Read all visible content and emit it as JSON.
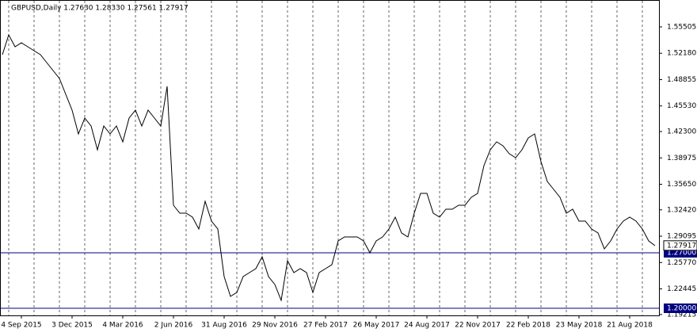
{
  "chart_data": {
    "type": "line",
    "title": "GBPUSD,Daily  1.27630 1.28330 1.27561 1.27917",
    "categories": [
      null,
      null,
      null,
      "4 Sep 2015",
      null,
      null,
      null,
      null,
      null,
      null,
      null,
      "3 Dec 2015",
      null,
      null,
      null,
      null,
      null,
      null,
      null,
      "4 Mar 2016",
      null,
      null,
      null,
      null,
      null,
      null,
      null,
      "2 Jun 2016",
      null,
      null,
      null,
      null,
      null,
      null,
      null,
      "31 Aug 2016",
      null,
      null,
      null,
      null,
      null,
      null,
      null,
      "29 Nov 2016",
      null,
      null,
      null,
      null,
      null,
      null,
      null,
      "27 Feb 2017",
      null,
      null,
      null,
      null,
      null,
      null,
      null,
      "26 May 2017",
      null,
      null,
      null,
      null,
      null,
      null,
      null,
      "24 Aug 2017",
      null,
      null,
      null,
      null,
      null,
      null,
      null,
      "22 Nov 2017",
      null,
      null,
      null,
      null,
      null,
      null,
      null,
      "22 Feb 2018",
      null,
      null,
      null,
      null,
      null,
      null,
      null,
      "23 May 2018",
      null,
      null,
      null,
      null,
      null,
      null,
      null,
      "21 Aug 2018",
      null,
      null,
      null,
      null
    ],
    "values": [
      1.52,
      1.545,
      1.53,
      1.535,
      1.53,
      1.525,
      1.52,
      1.51,
      1.5,
      1.49,
      1.47,
      1.45,
      1.42,
      1.44,
      1.43,
      1.4,
      1.43,
      1.42,
      1.43,
      1.41,
      1.44,
      1.45,
      1.43,
      1.45,
      1.44,
      1.43,
      1.48,
      1.33,
      1.32,
      1.32,
      1.315,
      1.3,
      1.335,
      1.31,
      1.3,
      1.24,
      1.215,
      1.22,
      1.24,
      1.245,
      1.25,
      1.265,
      1.24,
      1.23,
      1.21,
      1.26,
      1.245,
      1.25,
      1.245,
      1.22,
      1.245,
      1.25,
      1.255,
      1.285,
      1.29,
      1.29,
      1.29,
      1.285,
      1.27,
      1.285,
      1.29,
      1.3,
      1.315,
      1.295,
      1.29,
      1.32,
      1.345,
      1.345,
      1.32,
      1.315,
      1.325,
      1.325,
      1.33,
      1.33,
      1.34,
      1.345,
      1.38,
      1.4,
      1.41,
      1.405,
      1.395,
      1.39,
      1.4,
      1.415,
      1.42,
      1.385,
      1.36,
      1.35,
      1.34,
      1.32,
      1.325,
      1.31,
      1.31,
      1.3,
      1.295,
      1.275,
      1.285,
      1.3,
      1.31,
      1.315,
      1.31,
      1.3,
      1.285,
      1.279
    ],
    "color": "#000000",
    "ylim": [
      1.191,
      1.589
    ],
    "yticks": [
      1.55505,
      {
        "value": 1.5218,
        "label": "1.52180"
      },
      1.48855,
      {
        "value": 1.4553,
        "label": "1.45530"
      },
      {
        "value": 1.423,
        "label": "1.42300"
      },
      1.38975,
      {
        "value": 1.3565,
        "label": "1.35650"
      },
      {
        "value": 1.3242,
        "label": "1.32420"
      },
      1.29095,
      {
        "value": 1.2577,
        "label": "1.25770"
      },
      1.22445,
      1.19215
    ],
    "hlines": [
      {
        "value": 1.27,
        "label": "1.27000"
      },
      {
        "value": 1.2,
        "label": "1.20000"
      }
    ],
    "hline_color": "#000080",
    "price_label": {
      "value": 1.27917,
      "label": "1.27917"
    },
    "grid": true
  }
}
